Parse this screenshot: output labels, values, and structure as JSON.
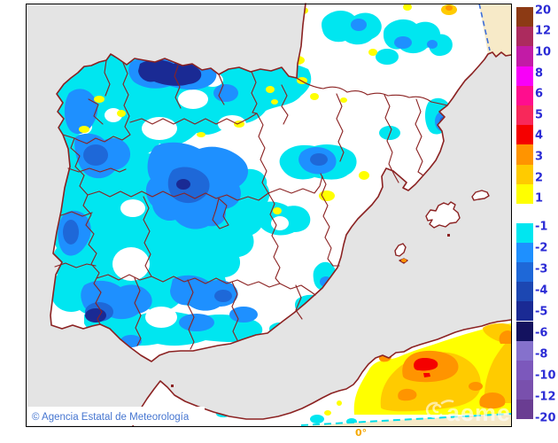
{
  "map": {
    "attribution": "© Agencia Estatal de Meteorología",
    "watermark_text": "aemet",
    "meridian_label": "0°"
  },
  "legend": {
    "positive": [
      {
        "label": "20",
        "color": "#8C3A14"
      },
      {
        "label": "12",
        "color": "#AC2B5E"
      },
      {
        "label": "10",
        "color": "#C21BA6"
      },
      {
        "label": "8",
        "color": "#F800F8"
      },
      {
        "label": "6",
        "color": "#FF0D8E"
      },
      {
        "label": "5",
        "color": "#F8285A"
      },
      {
        "label": "4",
        "color": "#F50000"
      },
      {
        "label": "3",
        "color": "#FF9400"
      },
      {
        "label": "2",
        "color": "#FFCB00"
      },
      {
        "label": "1",
        "color": "#FFFF00"
      }
    ],
    "negative": [
      {
        "label": "-1",
        "color": "#00E6F0"
      },
      {
        "label": "-2",
        "color": "#1E90FF"
      },
      {
        "label": "-3",
        "color": "#1E68D8"
      },
      {
        "label": "-4",
        "color": "#1C47B2"
      },
      {
        "label": "-5",
        "color": "#1A2A94"
      },
      {
        "label": "-6",
        "color": "#14125F"
      },
      {
        "label": "-8",
        "color": "#8571CC"
      },
      {
        "label": "-10",
        "color": "#7C58BC"
      },
      {
        "label": "-12",
        "color": "#7950AD"
      },
      {
        "label": "-20",
        "color": "#6A3D92"
      }
    ]
  },
  "colors": {
    "sea": "#E4E4E4",
    "land": "#FFFFFF",
    "outside_domain": "#F7EAC8",
    "coastline": "#8B2222",
    "domain_edge": "#3C6EDB",
    "graticule": "#00DDE8",
    "frame": "#000000",
    "label_blue": "#2B2BD5",
    "attribution_blue": "#4575D0",
    "meridian_label_color": "#F5A800"
  }
}
